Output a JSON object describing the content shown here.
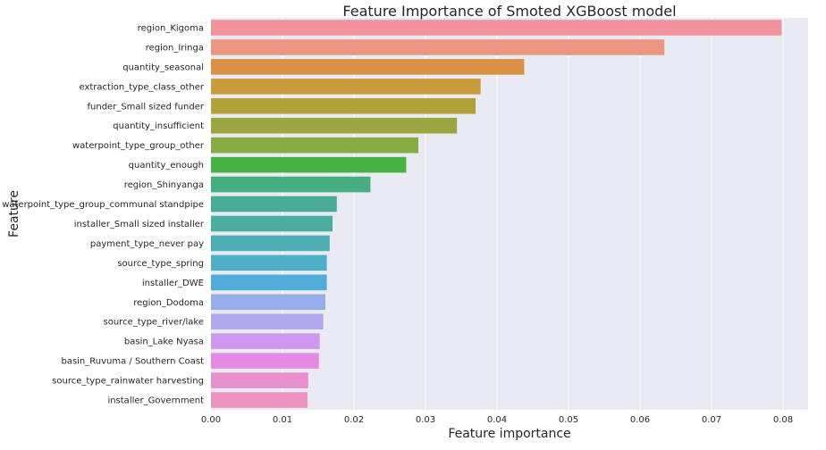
{
  "chart_data": {
    "type": "bar",
    "orientation": "horizontal",
    "title": "Feature Importance of Smoted XGBoost model",
    "xlabel": "Feature importance",
    "ylabel": "Feature",
    "xlim": [
      0,
      0.0835
    ],
    "xticks": [
      0.0,
      0.01,
      0.02,
      0.03,
      0.04,
      0.05,
      0.06,
      0.07,
      0.08
    ],
    "xtick_labels": [
      "0.00",
      "0.01",
      "0.02",
      "0.03",
      "0.04",
      "0.05",
      "0.06",
      "0.07",
      "0.08"
    ],
    "grid": true,
    "categories": [
      "region_Kigoma",
      "region_Iringa",
      "quantity_seasonal",
      "extraction_type_class_other",
      "funder_Small sized funder",
      "quantity_insufficient",
      "waterpoint_type_group_other",
      "quantity_enough",
      "region_Shinyanga",
      "waterpoint_type_group_communal standpipe",
      "installer_Small sized installer",
      "payment_type_never pay",
      "source_type_spring",
      "installer_DWE",
      "region_Dodoma",
      "source_type_river/lake",
      "basin_Lake Nyasa",
      "basin_Ruvuma / Southern Coast",
      "source_type_rainwater harvesting",
      "installer_Government"
    ],
    "values": [
      0.0798,
      0.0634,
      0.0438,
      0.0377,
      0.037,
      0.0344,
      0.029,
      0.0273,
      0.0223,
      0.0176,
      0.017,
      0.0166,
      0.0162,
      0.0162,
      0.016,
      0.0157,
      0.0152,
      0.0151,
      0.0136,
      0.0135
    ],
    "colors": [
      "#f0939c",
      "#ec9581",
      "#da9146",
      "#c89b3c",
      "#b2a03a",
      "#9ba63e",
      "#86ac43",
      "#47b344",
      "#44ae81",
      "#49ad96",
      "#4aad9f",
      "#4cadb3",
      "#4eb0c8",
      "#50acd9",
      "#96ade9",
      "#b0a7ed",
      "#cd98ed",
      "#e68be4",
      "#e890cf",
      "#eb92c0"
    ]
  }
}
